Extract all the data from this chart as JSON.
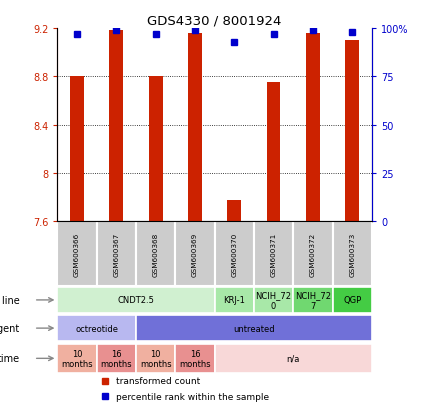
{
  "title": "GDS4330 / 8001924",
  "samples": [
    "GSM600366",
    "GSM600367",
    "GSM600368",
    "GSM600369",
    "GSM600370",
    "GSM600371",
    "GSM600372",
    "GSM600373"
  ],
  "bar_values": [
    8.8,
    9.18,
    8.8,
    9.16,
    7.78,
    8.75,
    9.16,
    9.1
  ],
  "bar_bottom": 7.6,
  "percentile_values": [
    97,
    99,
    97,
    99,
    93,
    97,
    99,
    98
  ],
  "ylim_left": [
    7.6,
    9.2
  ],
  "ylim_right": [
    0,
    100
  ],
  "yticks_left": [
    7.6,
    8.0,
    8.4,
    8.8,
    9.2
  ],
  "yticks_right": [
    0,
    25,
    50,
    75,
    100
  ],
  "ytick_labels_left": [
    "7.6",
    "8",
    "8.4",
    "8.8",
    "9.2"
  ],
  "ytick_labels_right": [
    "0",
    "25",
    "50",
    "75",
    "100%"
  ],
  "bar_color": "#cc2200",
  "dot_color": "#0000cc",
  "cell_line_data": [
    {
      "label": "CNDT2.5",
      "span": [
        0,
        4
      ],
      "color": "#d0f0d0"
    },
    {
      "label": "KRJ-1",
      "span": [
        4,
        5
      ],
      "color": "#a8e8a8"
    },
    {
      "label": "NCIH_72\n0",
      "span": [
        5,
        6
      ],
      "color": "#a8e8a8"
    },
    {
      "label": "NCIH_72\n7",
      "span": [
        6,
        7
      ],
      "color": "#70d870"
    },
    {
      "label": "QGP",
      "span": [
        7,
        8
      ],
      "color": "#44cc44"
    }
  ],
  "agent_data": [
    {
      "label": "octreotide",
      "span": [
        0,
        2
      ],
      "color": "#b8b8f0"
    },
    {
      "label": "untreated",
      "span": [
        2,
        8
      ],
      "color": "#7070d8"
    }
  ],
  "time_data": [
    {
      "label": "10\nmonths",
      "span": [
        0,
        1
      ],
      "color": "#f0b0a0"
    },
    {
      "label": "16\nmonths",
      "span": [
        1,
        2
      ],
      "color": "#e89090"
    },
    {
      "label": "10\nmonths",
      "span": [
        2,
        3
      ],
      "color": "#f0b0a0"
    },
    {
      "label": "16\nmonths",
      "span": [
        3,
        4
      ],
      "color": "#e89090"
    },
    {
      "label": "n/a",
      "span": [
        4,
        8
      ],
      "color": "#f8d8d8"
    }
  ],
  "legend_items": [
    {
      "label": "transformed count",
      "color": "#cc2200"
    },
    {
      "label": "percentile rank within the sample",
      "color": "#0000cc"
    }
  ],
  "bar_width": 0.35,
  "gsm_bg": "#cccccc",
  "gsm_border": "#ffffff"
}
